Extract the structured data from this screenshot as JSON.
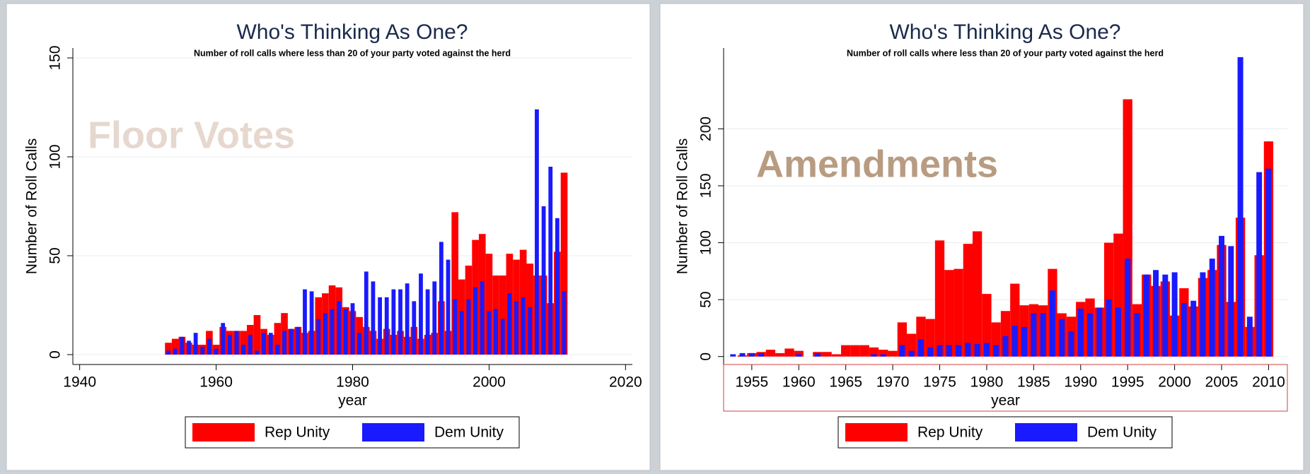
{
  "chart_data": [
    {
      "type": "bar",
      "title": "Who's Thinking As One?",
      "subtitle": "Number of roll calls where less than 20 of your party voted against the herd",
      "annotation": "Floor Votes",
      "x_label": "year",
      "y_label": "Number of Roll Calls",
      "x": [
        1953,
        1954,
        1955,
        1956,
        1957,
        1958,
        1959,
        1960,
        1961,
        1962,
        1963,
        1964,
        1965,
        1966,
        1967,
        1968,
        1969,
        1970,
        1971,
        1972,
        1973,
        1974,
        1975,
        1976,
        1977,
        1978,
        1979,
        1980,
        1981,
        1982,
        1983,
        1984,
        1985,
        1986,
        1987,
        1988,
        1989,
        1990,
        1991,
        1992,
        1993,
        1994,
        1995,
        1996,
        1997,
        1998,
        1999,
        2000,
        2001,
        2002,
        2003,
        2004,
        2005,
        2006,
        2007,
        2008,
        2009,
        2010,
        2011
      ],
      "series": [
        {
          "name": "Rep Unity",
          "color": "#ff0000",
          "values": [
            6,
            8,
            9,
            6,
            5,
            5,
            12,
            5,
            14,
            12,
            12,
            12,
            15,
            20,
            13,
            10,
            16,
            21,
            13,
            14,
            11,
            12,
            29,
            31,
            35,
            34,
            24,
            22,
            19,
            14,
            12,
            8,
            13,
            10,
            12,
            9,
            14,
            8,
            10,
            11,
            27,
            12,
            72,
            38,
            45,
            58,
            61,
            51,
            40,
            40,
            51,
            48,
            53,
            46,
            40,
            40,
            26,
            52,
            92
          ]
        },
        {
          "name": "Dem Unity",
          "color": "#1a1aff",
          "values": [
            2,
            3,
            9,
            7,
            11,
            4,
            8,
            3,
            16,
            10,
            12,
            5,
            10,
            2,
            11,
            11,
            5,
            12,
            13,
            14,
            33,
            32,
            18,
            21,
            23,
            27,
            23,
            26,
            11,
            42,
            37,
            29,
            29,
            33,
            33,
            36,
            27,
            41,
            33,
            37,
            57,
            48,
            28,
            22,
            28,
            34,
            37,
            22,
            23,
            18,
            31,
            27,
            29,
            24,
            124,
            75,
            95,
            69,
            32
          ]
        }
      ],
      "xlim": [
        1939,
        2021
      ],
      "xticks": [
        1940,
        1960,
        1980,
        2000,
        2020
      ],
      "ylim": [
        -5,
        155
      ],
      "yticks": [
        0,
        50,
        100,
        150
      ],
      "grid": true,
      "legend_position": "bottom"
    },
    {
      "type": "bar",
      "title": "Who's Thinking As One?",
      "subtitle": "Number of roll calls where less than 20 of your party voted against the herd",
      "annotation": "Amendments",
      "x_label": "year",
      "y_label": "Number of Roll Calls",
      "x": [
        1953,
        1954,
        1955,
        1956,
        1957,
        1958,
        1959,
        1960,
        1961,
        1962,
        1963,
        1964,
        1965,
        1966,
        1967,
        1968,
        1969,
        1970,
        1971,
        1972,
        1973,
        1974,
        1975,
        1976,
        1977,
        1978,
        1979,
        1980,
        1981,
        1982,
        1983,
        1984,
        1985,
        1986,
        1987,
        1988,
        1989,
        1990,
        1991,
        1992,
        1993,
        1994,
        1995,
        1996,
        1997,
        1998,
        1999,
        2000,
        2001,
        2002,
        2003,
        2004,
        2005,
        2006,
        2007,
        2008,
        2009,
        2010
      ],
      "series": [
        {
          "name": "Rep Unity",
          "color": "#ff0000",
          "values": [
            0,
            1,
            3,
            4,
            6,
            3,
            7,
            5,
            0,
            4,
            4,
            2,
            10,
            10,
            10,
            8,
            6,
            5,
            30,
            20,
            35,
            33,
            102,
            76,
            77,
            99,
            110,
            55,
            30,
            40,
            64,
            45,
            46,
            45,
            77,
            38,
            35,
            48,
            51,
            43,
            100,
            108,
            226,
            46,
            72,
            62,
            66,
            36,
            60,
            44,
            69,
            76,
            98,
            48,
            122,
            26,
            89,
            189
          ]
        },
        {
          "name": "Dem Unity",
          "color": "#1a1aff",
          "values": [
            2,
            3,
            3,
            3,
            0,
            0,
            0,
            2,
            0,
            3,
            0,
            0,
            0,
            0,
            0,
            2,
            2,
            0,
            10,
            5,
            15,
            8,
            10,
            10,
            10,
            12,
            11,
            12,
            10,
            18,
            27,
            26,
            38,
            38,
            58,
            33,
            22,
            42,
            38,
            43,
            50,
            43,
            86,
            38,
            72,
            76,
            72,
            74,
            47,
            49,
            74,
            86,
            106,
            97,
            263,
            35,
            162,
            165
          ]
        }
      ],
      "xlim": [
        1952,
        2012
      ],
      "xticks": [
        1955,
        1960,
        1965,
        1970,
        1975,
        1980,
        1985,
        1990,
        1995,
        2000,
        2005,
        2010
      ],
      "ylim": [
        -7,
        271
      ],
      "yticks": [
        0,
        50,
        100,
        150,
        200
      ],
      "grid": true,
      "legend_position": "bottom"
    }
  ]
}
